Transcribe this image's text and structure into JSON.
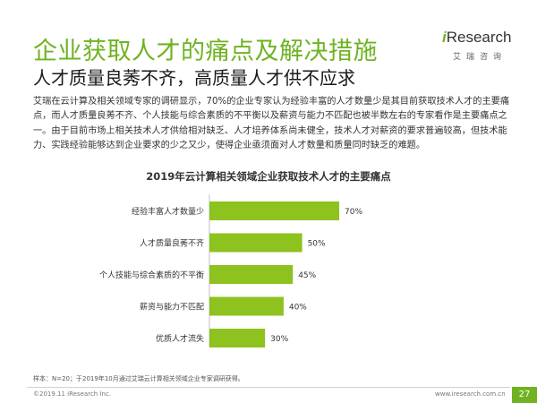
{
  "header": {
    "title": "企业获取人才的痛点及解决措施",
    "subtitle": "人才质量良莠不齐，高质量人才供不应求"
  },
  "logo": {
    "prefix": "i",
    "name": "Research",
    "cn": "艾瑞咨询"
  },
  "body_text": "艾瑞在云计算及相关领域专家的调研显示，70%的企业专家认为经验丰富的人才数量少是其目前获取技术人才的主要痛点，而人才质量良莠不齐、个人技能与综合素质的不平衡以及薪资与能力不匹配也被半数左右的专家看作是主要痛点之一。由于目前市场上相关技术人才供给相对缺乏、人才培养体系尚未健全，技术人才对薪资的要求普遍较高，但技术能力、实践经验能够达到企业要求的少之又少，使得企业亟须面对人才数量和质量同时缺乏的难题。",
  "chart_data": {
    "type": "bar",
    "orientation": "horizontal",
    "title": "2019年云计算相关领域企业获取技术人才的主要痛点",
    "categories": [
      "经验丰富人才数量少",
      "人才质量良莠不齐",
      "个人技能与综合素质的不平衡",
      "薪资与能力不匹配",
      "优质人才流失"
    ],
    "values": [
      70,
      50,
      45,
      40,
      30
    ],
    "value_labels": [
      "70%",
      "50%",
      "45%",
      "40%",
      "30%"
    ],
    "unit": "%",
    "xlim": [
      0,
      100
    ],
    "bar_color": "#8dc21f",
    "grid": false,
    "legend": false
  },
  "footnote": "样本：N=20；于2019年10月通过艾瑞云计算相关领域企业专家调研获得。",
  "footer": {
    "copyright": "©2019.11 iResearch Inc.",
    "website": "www.iresearch.com.cn",
    "page": "27"
  },
  "colors": {
    "accent": "#6fb322",
    "bar": "#8dc21f"
  }
}
